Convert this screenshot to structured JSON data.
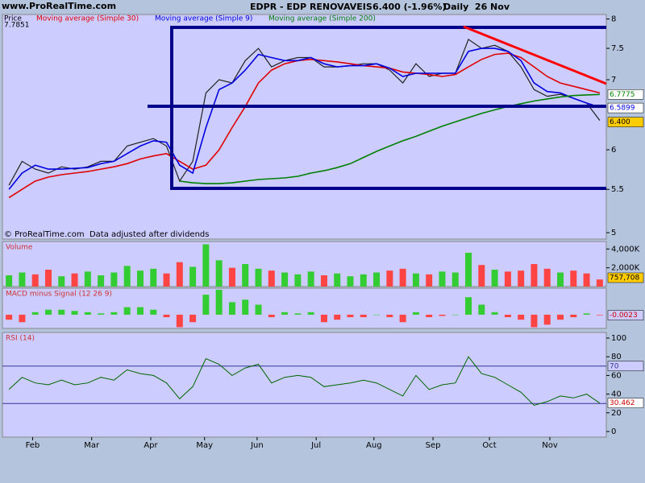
{
  "header": {
    "source": "www.ProRealTime.com",
    "title": "EDPR - EDP RENOVAVEIS",
    "price_change": "6.400 (-1.96%)",
    "period": "Daily  26 Nov",
    "note": "© ProRealTime.com  Data adjusted after dividends"
  },
  "chart_data": [
    {
      "type": "line",
      "log": true,
      "cursor_value": 7.7851,
      "x": [
        0.5,
        1.5,
        2.5,
        3.5,
        4.5,
        5.5,
        6.5,
        7.5,
        8.5,
        9.5,
        10.5,
        11.5,
        12.5,
        13.5,
        14.5,
        15.5,
        16.5,
        17.5,
        18.5,
        19.5,
        20.5,
        21.5,
        22.5,
        23.5,
        24.5,
        25.5,
        26.5,
        27.5,
        28.5,
        29.5,
        30.5,
        31.5,
        32.5,
        33.5,
        34.5,
        35.5,
        36.5,
        37.5,
        38.5,
        39.5,
        40.5,
        41.5,
        42.5,
        43.5,
        44.5,
        45.5
      ],
      "xlim": [
        0,
        46
      ],
      "xticks": [
        {
          "value": 2.3,
          "label": "Feb"
        },
        {
          "value": 6.8,
          "label": "Mar"
        },
        {
          "value": 11.3,
          "label": "Apr"
        },
        {
          "value": 15.4,
          "label": "May"
        },
        {
          "value": 19.4,
          "label": "Jun"
        },
        {
          "value": 23.9,
          "label": "Jul"
        },
        {
          "value": 28.3,
          "label": "Aug"
        },
        {
          "value": 32.8,
          "label": "Sep"
        },
        {
          "value": 37.1,
          "label": "Oct"
        },
        {
          "value": 41.7,
          "label": "Nov"
        }
      ],
      "ylim": [
        4.93,
        8.08
      ],
      "yticks": [
        5,
        5.5,
        6,
        7,
        7.5,
        8
      ],
      "series": [
        {
          "name": "Price",
          "color": "#202020",
          "last_label": "6.400",
          "values": [
            5.55,
            5.85,
            5.75,
            5.7,
            5.78,
            5.75,
            5.78,
            5.85,
            5.85,
            6.05,
            6.1,
            6.15,
            6.05,
            5.6,
            5.85,
            6.8,
            7.0,
            6.95,
            7.3,
            7.5,
            7.2,
            7.3,
            7.35,
            7.35,
            7.2,
            7.2,
            7.22,
            7.25,
            7.25,
            7.15,
            6.95,
            7.25,
            7.05,
            7.1,
            7.1,
            7.65,
            7.5,
            7.55,
            7.45,
            7.2,
            6.85,
            6.75,
            6.78,
            6.72,
            6.65,
            6.4
          ]
        },
        {
          "name": "Moving average (Simple 30)",
          "color": "#e00000",
          "values": [
            5.4,
            5.5,
            5.6,
            5.65,
            5.68,
            5.7,
            5.72,
            5.75,
            5.78,
            5.82,
            5.88,
            5.92,
            5.95,
            5.85,
            5.75,
            5.8,
            6.0,
            6.3,
            6.6,
            6.95,
            7.15,
            7.25,
            7.3,
            7.32,
            7.3,
            7.28,
            7.25,
            7.22,
            7.2,
            7.18,
            7.12,
            7.1,
            7.08,
            7.05,
            7.08,
            7.2,
            7.32,
            7.4,
            7.42,
            7.35,
            7.2,
            7.05,
            6.95,
            6.9,
            6.85,
            6.8
          ]
        },
        {
          "name": "Moving average (Simple 9)",
          "color": "#0000e0",
          "values": [
            5.5,
            5.7,
            5.8,
            5.75,
            5.75,
            5.76,
            5.77,
            5.82,
            5.85,
            5.95,
            6.05,
            6.12,
            6.1,
            5.8,
            5.7,
            6.3,
            6.85,
            6.95,
            7.15,
            7.4,
            7.35,
            7.3,
            7.3,
            7.35,
            7.25,
            7.2,
            7.22,
            7.22,
            7.25,
            7.18,
            7.05,
            7.1,
            7.1,
            7.1,
            7.1,
            7.45,
            7.5,
            7.5,
            7.45,
            7.3,
            6.95,
            6.82,
            6.8,
            6.72,
            6.65,
            6.5899
          ]
        },
        {
          "name": "Moving average (Simple 200)",
          "color": "#008000",
          "values": [
            null,
            null,
            null,
            null,
            null,
            null,
            null,
            null,
            null,
            null,
            null,
            null,
            null,
            5.6,
            5.58,
            5.57,
            5.57,
            5.58,
            5.6,
            5.62,
            5.63,
            5.64,
            5.66,
            5.7,
            5.73,
            5.77,
            5.82,
            5.9,
            5.98,
            6.05,
            6.12,
            6.18,
            6.25,
            6.32,
            6.38,
            6.44,
            6.5,
            6.55,
            6.6,
            6.64,
            6.68,
            6.71,
            6.74,
            6.76,
            6.77,
            6.7775
          ]
        }
      ]
    },
    {
      "type": "bar",
      "title": "Volume",
      "up_color": "#33cc33",
      "down_color": "#ff4444",
      "last_label": "757,708",
      "ylim": [
        0,
        4800000
      ],
      "yticks": [
        {
          "value": 2000000,
          "label": "2,000K"
        },
        {
          "value": 4000000,
          "label": "4,000K"
        }
      ],
      "values": [
        1200000,
        1500000,
        1300000,
        1800000,
        1100000,
        1400000,
        1600000,
        1200000,
        1500000,
        2200000,
        1700000,
        1900000,
        1400000,
        2600000,
        2100000,
        4500000,
        2800000,
        2000000,
        2400000,
        1900000,
        1700000,
        1500000,
        1300000,
        1600000,
        1200000,
        1400000,
        1100000,
        1300000,
        1500000,
        1700000,
        1900000,
        1400000,
        1300000,
        1600000,
        1500000,
        3600000,
        2300000,
        1800000,
        1600000,
        1700000,
        2400000,
        1900000,
        1500000,
        1700000,
        1400000,
        757708
      ]
    },
    {
      "type": "bar",
      "title": "MACD minus Signal (12 26 9)",
      "up_color": "#33cc33",
      "down_color": "#ff4444",
      "ylim": [
        -0.055,
        0.106
      ],
      "values": [
        -0.02,
        -0.03,
        0.01,
        0.02,
        0.02,
        0.015,
        0.01,
        0.005,
        0.01,
        0.03,
        0.03,
        0.02,
        -0.01,
        -0.05,
        -0.03,
        0.08,
        0.1,
        0.05,
        0.06,
        0.04,
        -0.01,
        0.01,
        0.005,
        0.01,
        -0.03,
        -0.02,
        -0.01,
        -0.01,
        0,
        -0.01,
        -0.03,
        0.01,
        -0.01,
        -0.005,
        0,
        0.07,
        0.04,
        0.01,
        -0.01,
        -0.02,
        -0.05,
        -0.04,
        -0.02,
        -0.01,
        0.005,
        -0.0023
      ]
    },
    {
      "type": "line",
      "title": "RSI (14)",
      "color": "#006600",
      "levels": [
        70,
        30
      ],
      "ylim": [
        -6,
        106
      ],
      "yticks": [
        0,
        20,
        40,
        60,
        80,
        100
      ],
      "values": [
        45,
        58,
        52,
        50,
        55,
        50,
        52,
        58,
        55,
        66,
        62,
        60,
        52,
        35,
        48,
        78,
        72,
        60,
        68,
        72,
        52,
        58,
        60,
        58,
        48,
        50,
        52,
        55,
        52,
        45,
        38,
        60,
        45,
        50,
        52,
        80,
        62,
        58,
        50,
        42,
        28,
        32,
        38,
        36,
        40,
        30.462
      ]
    }
  ]
}
